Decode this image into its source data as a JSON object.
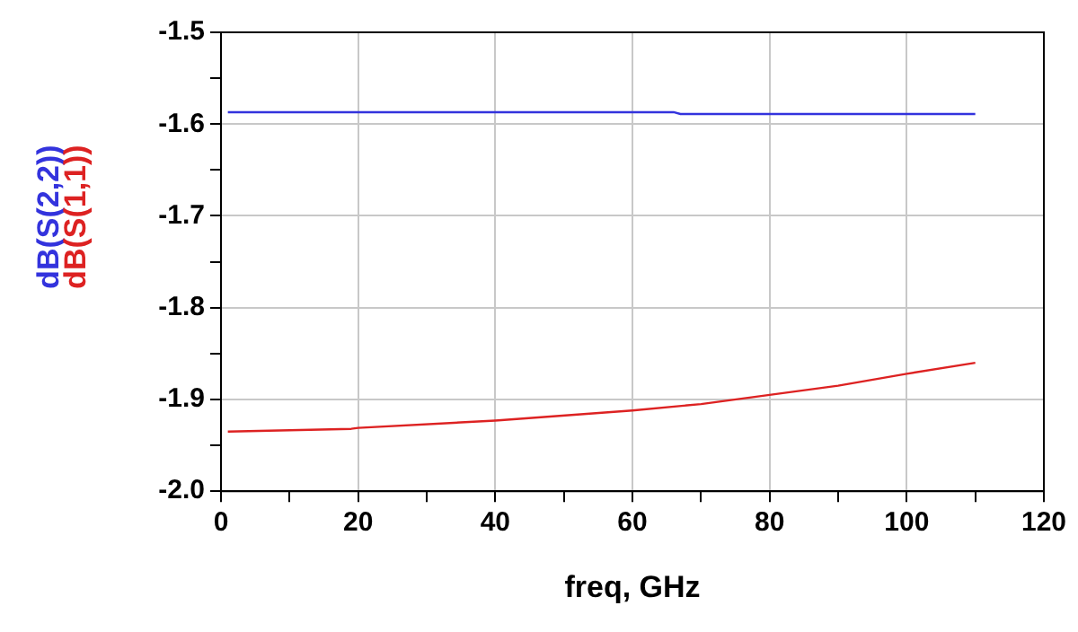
{
  "chart_data": {
    "type": "line",
    "xlabel": "freq, GHz",
    "series": [
      {
        "name": "dB(S(2,2))",
        "color": "#3333dd",
        "x": [
          1,
          20,
          40,
          66,
          67,
          80,
          100,
          110
        ],
        "values": [
          -1.587,
          -1.587,
          -1.587,
          -1.587,
          -1.589,
          -1.589,
          -1.589,
          -1.589
        ]
      },
      {
        "name": "dB(S(1,1))",
        "color": "#dd2222",
        "x": [
          1,
          19,
          20,
          40,
          60,
          70,
          80,
          90,
          100,
          110
        ],
        "values": [
          -1.935,
          -1.932,
          -1.931,
          -1.923,
          -1.912,
          -1.905,
          -1.895,
          -1.885,
          -1.872,
          -1.86
        ]
      }
    ],
    "xlim": [
      0,
      120
    ],
    "xticks": [
      0,
      {
        "value": 10,
        "label": null
      },
      20,
      {
        "value": 30,
        "label": null
      },
      40,
      {
        "value": 50,
        "label": null
      },
      60,
      {
        "value": 70,
        "label": null
      },
      80,
      {
        "value": 90,
        "label": null
      },
      100,
      {
        "value": 110,
        "label": null
      },
      120
    ],
    "ylim": [
      -2.0,
      -1.5
    ],
    "yticks": [
      {
        "value": -2.0,
        "label": "-2.0"
      },
      {
        "value": -1.95,
        "label": null
      },
      {
        "value": -1.9,
        "label": "-1.9"
      },
      {
        "value": -1.85,
        "label": null
      },
      {
        "value": -1.8,
        "label": "-1.8"
      },
      {
        "value": -1.75,
        "label": null
      },
      {
        "value": -1.7,
        "label": "-1.7"
      },
      {
        "value": -1.65,
        "label": null
      },
      {
        "value": -1.6,
        "label": "-1.6"
      },
      {
        "value": -1.55,
        "label": null
      },
      {
        "value": -1.5,
        "label": "-1.5"
      }
    ],
    "grid": true,
    "legend": false,
    "marker": "none",
    "line_style": "solid"
  }
}
